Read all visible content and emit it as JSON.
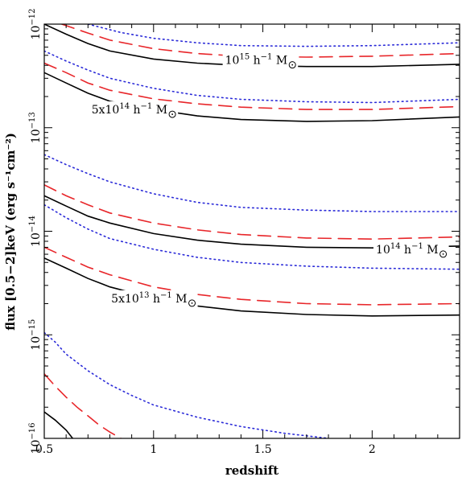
{
  "chart_data": {
    "type": "line",
    "title": "",
    "xlabel": "redshift",
    "ylabel": "flux [0.5−2]keV (erg s⁻¹cm⁻²)",
    "xlim": [
      0.5,
      2.4
    ],
    "ylim": [
      1e-16,
      1e-12
    ],
    "yscale": "log",
    "x_ticks": [
      {
        "value": 0.5,
        "label": "0.5"
      },
      {
        "value": 1,
        "label": "1"
      },
      {
        "value": 1.5,
        "label": "1.5"
      },
      {
        "value": 2,
        "label": "2"
      }
    ],
    "y_ticks": [
      {
        "value": 1e-16,
        "base": "10",
        "exp": "−16"
      },
      {
        "value": 1e-15,
        "base": "10",
        "exp": "−15"
      },
      {
        "value": 1e-14,
        "base": "10",
        "exp": "−14"
      },
      {
        "value": 1e-13,
        "base": "10",
        "exp": "−13"
      },
      {
        "value": 1e-12,
        "base": "10",
        "exp": "−12"
      }
    ],
    "grid": false,
    "colors": {
      "solid": "#000000",
      "dashed": "#e8262a",
      "dotted": "#2a2ad8"
    },
    "series": [
      {
        "style": "solid",
        "points": [
          [
            0.5,
            1e-12
          ],
          [
            0.6,
            8e-13
          ],
          [
            0.7,
            6.5e-13
          ],
          [
            0.8,
            5.5e-13
          ],
          [
            1.0,
            4.6e-13
          ],
          [
            1.2,
            4.2e-13
          ],
          [
            1.4,
            4e-13
          ],
          [
            1.7,
            3.9e-13
          ],
          [
            2.0,
            3.9e-13
          ],
          [
            2.4,
            4.1e-13
          ]
        ]
      },
      {
        "style": "dashed",
        "points": [
          [
            0.58,
            1e-12
          ],
          [
            0.7,
            8.2e-13
          ],
          [
            0.8,
            7e-13
          ],
          [
            1.0,
            5.8e-13
          ],
          [
            1.2,
            5.2e-13
          ],
          [
            1.4,
            4.9e-13
          ],
          [
            1.7,
            4.8e-13
          ],
          [
            2.0,
            4.9e-13
          ],
          [
            2.4,
            5.2e-13
          ]
        ]
      },
      {
        "style": "dotted",
        "points": [
          [
            0.7,
            1e-12
          ],
          [
            0.85,
            8.3e-13
          ],
          [
            1.0,
            7.3e-13
          ],
          [
            1.2,
            6.6e-13
          ],
          [
            1.4,
            6.2e-13
          ],
          [
            1.7,
            6.1e-13
          ],
          [
            2.0,
            6.2e-13
          ],
          [
            2.4,
            6.6e-13
          ]
        ]
      },
      {
        "style": "solid",
        "points": [
          [
            0.5,
            3.4e-13
          ],
          [
            0.6,
            2.7e-13
          ],
          [
            0.7,
            2.15e-13
          ],
          [
            0.8,
            1.8e-13
          ],
          [
            1.0,
            1.5e-13
          ],
          [
            1.2,
            1.3e-13
          ],
          [
            1.4,
            1.2e-13
          ],
          [
            1.7,
            1.15e-13
          ],
          [
            2.0,
            1.17e-13
          ],
          [
            2.4,
            1.27e-13
          ]
        ]
      },
      {
        "style": "dashed",
        "points": [
          [
            0.5,
            4.2e-13
          ],
          [
            0.6,
            3.4e-13
          ],
          [
            0.7,
            2.7e-13
          ],
          [
            0.8,
            2.3e-13
          ],
          [
            1.0,
            1.9e-13
          ],
          [
            1.2,
            1.7e-13
          ],
          [
            1.4,
            1.58e-13
          ],
          [
            1.7,
            1.5e-13
          ],
          [
            2.0,
            1.5e-13
          ],
          [
            2.4,
            1.6e-13
          ]
        ]
      },
      {
        "style": "dotted",
        "points": [
          [
            0.5,
            5.5e-13
          ],
          [
            0.6,
            4.4e-13
          ],
          [
            0.7,
            3.6e-13
          ],
          [
            0.8,
            3e-13
          ],
          [
            1.0,
            2.4e-13
          ],
          [
            1.2,
            2.05e-13
          ],
          [
            1.4,
            1.88e-13
          ],
          [
            1.7,
            1.78e-13
          ],
          [
            2.0,
            1.75e-13
          ],
          [
            2.4,
            1.88e-13
          ]
        ]
      },
      {
        "style": "dotted",
        "points": [
          [
            0.5,
            5.5e-14
          ],
          [
            0.6,
            4.4e-14
          ],
          [
            0.7,
            3.6e-14
          ],
          [
            0.8,
            3e-14
          ],
          [
            1.0,
            2.3e-14
          ],
          [
            1.2,
            1.9e-14
          ],
          [
            1.4,
            1.7e-14
          ],
          [
            1.7,
            1.6e-14
          ],
          [
            2.0,
            1.55e-14
          ],
          [
            2.4,
            1.55e-14
          ]
        ]
      },
      {
        "style": "solid",
        "points": [
          [
            0.5,
            2.2e-14
          ],
          [
            0.6,
            1.75e-14
          ],
          [
            0.7,
            1.4e-14
          ],
          [
            0.8,
            1.2e-14
          ],
          [
            1.0,
            9.5e-15
          ],
          [
            1.2,
            8.2e-15
          ],
          [
            1.4,
            7.5e-15
          ],
          [
            1.7,
            7e-15
          ],
          [
            2.0,
            6.9e-15
          ],
          [
            2.4,
            7.2e-15
          ]
        ]
      },
      {
        "style": "dashed",
        "points": [
          [
            0.5,
            2.8e-14
          ],
          [
            0.6,
            2.2e-14
          ],
          [
            0.7,
            1.8e-14
          ],
          [
            0.8,
            1.5e-14
          ],
          [
            1.0,
            1.2e-14
          ],
          [
            1.2,
            1.03e-14
          ],
          [
            1.4,
            9.3e-15
          ],
          [
            1.7,
            8.6e-15
          ],
          [
            2.0,
            8.4e-15
          ],
          [
            2.4,
            8.8e-15
          ]
        ]
      },
      {
        "style": "dotted",
        "points": [
          [
            0.5,
            1.8e-14
          ],
          [
            0.6,
            1.35e-14
          ],
          [
            0.7,
            1.05e-14
          ],
          [
            0.8,
            8.5e-15
          ],
          [
            1.0,
            6.7e-15
          ],
          [
            1.2,
            5.6e-15
          ],
          [
            1.4,
            5e-15
          ],
          [
            1.7,
            4.6e-15
          ],
          [
            2.0,
            4.4e-15
          ],
          [
            2.4,
            4.3e-15
          ]
        ]
      },
      {
        "style": "dashed",
        "points": [
          [
            0.5,
            7e-15
          ],
          [
            0.6,
            5.6e-15
          ],
          [
            0.7,
            4.5e-15
          ],
          [
            0.8,
            3.8e-15
          ],
          [
            1.0,
            2.9e-15
          ],
          [
            1.2,
            2.45e-15
          ],
          [
            1.4,
            2.2e-15
          ],
          [
            1.7,
            2e-15
          ],
          [
            2.0,
            1.95e-15
          ],
          [
            2.4,
            2e-15
          ]
        ]
      },
      {
        "style": "solid",
        "points": [
          [
            0.5,
            5.5e-15
          ],
          [
            0.6,
            4.4e-15
          ],
          [
            0.7,
            3.5e-15
          ],
          [
            0.8,
            2.9e-15
          ],
          [
            1.0,
            2.25e-15
          ],
          [
            1.2,
            1.9e-15
          ],
          [
            1.4,
            1.7e-15
          ],
          [
            1.7,
            1.57e-15
          ],
          [
            2.0,
            1.52e-15
          ],
          [
            2.4,
            1.55e-15
          ]
        ]
      },
      {
        "style": "dotted",
        "points": [
          [
            0.5,
            1.05e-15
          ],
          [
            0.55,
            8.5e-16
          ],
          [
            0.6,
            6.5e-16
          ],
          [
            0.7,
            4.5e-16
          ],
          [
            0.8,
            3.3e-16
          ],
          [
            0.9,
            2.6e-16
          ],
          [
            1.0,
            2.1e-16
          ],
          [
            1.2,
            1.6e-16
          ],
          [
            1.4,
            1.3e-16
          ],
          [
            1.6,
            1.12e-16
          ],
          [
            1.8,
            1e-16
          ]
        ]
      },
      {
        "style": "dashed",
        "points": [
          [
            0.5,
            4.2e-16
          ],
          [
            0.55,
            3.2e-16
          ],
          [
            0.6,
            2.5e-16
          ],
          [
            0.65,
            2e-16
          ],
          [
            0.7,
            1.65e-16
          ],
          [
            0.75,
            1.35e-16
          ],
          [
            0.8,
            1.15e-16
          ],
          [
            0.85,
            1e-16
          ]
        ]
      },
      {
        "style": "solid",
        "points": [
          [
            0.5,
            1.8e-16
          ],
          [
            0.55,
            1.5e-16
          ],
          [
            0.6,
            1.2e-16
          ],
          [
            0.63,
            1e-16
          ]
        ]
      }
    ],
    "annotations": [
      {
        "base": "10",
        "sup": "15",
        "text": " h",
        "sup2": "−1",
        "unit": " M",
        "x": 1.47,
        "y": 4.5e-13
      },
      {
        "base": "5x10",
        "sup": "14",
        "text": " h",
        "sup2": "−1",
        "unit": " M",
        "x": 0.89,
        "y": 1.5e-13
      },
      {
        "base": "10",
        "sup": "14",
        "text": "  h",
        "sup2": "−1",
        "unit": " M",
        "x": 2.16,
        "y": 6.7e-15
      },
      {
        "base": "5x10",
        "sup": "13",
        "text": " h",
        "sup2": "−1",
        "unit": " M",
        "x": 0.98,
        "y": 2.25e-15
      }
    ]
  }
}
